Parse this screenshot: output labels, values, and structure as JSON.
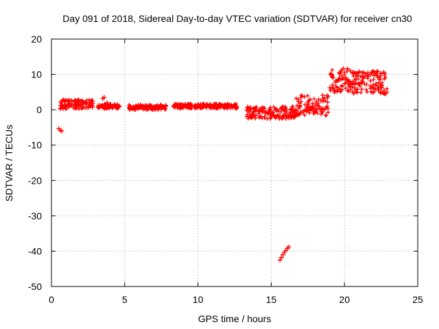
{
  "chart_data": {
    "type": "scatter",
    "title": "Day 091 of 2018, Sidereal Day-to-day VTEC variation (SDTVAR) for receiver cn30",
    "xlabel": "GPS time / hours",
    "ylabel": "SDTVAR / TECUs",
    "xlim": [
      0,
      25
    ],
    "ylim": [
      -50,
      20
    ],
    "xticks": [
      "0",
      "5",
      "10",
      "15",
      "20",
      "25"
    ],
    "yticks": [
      "20",
      "10",
      "0",
      "-10",
      "-20",
      "-30",
      "-40",
      "-50"
    ],
    "grid": true,
    "marker": "+",
    "color": "#ff0000",
    "series": [
      {
        "name": "SDTVAR",
        "points": [
          [
            0.5,
            -5.3
          ],
          [
            0.6,
            -5.8
          ],
          [
            0.7,
            -6.0
          ],
          [
            0.6,
            0.3
          ],
          [
            0.8,
            0.8
          ],
          [
            1.0,
            1.2
          ],
          [
            1.2,
            1.8
          ],
          [
            1.4,
            2.2
          ],
          [
            1.6,
            2.5
          ],
          [
            1.8,
            2.7
          ],
          [
            2.0,
            2.4
          ],
          [
            2.2,
            2.0
          ],
          [
            2.4,
            1.8
          ],
          [
            2.6,
            2.1
          ],
          [
            2.8,
            2.4
          ],
          [
            1.9,
            1.6
          ],
          [
            2.1,
            1.5
          ],
          [
            2.5,
            1.2
          ],
          [
            2.7,
            1.4
          ],
          [
            3.2,
            0.8
          ],
          [
            3.4,
            1.0
          ],
          [
            3.6,
            1.2
          ],
          [
            3.5,
            3.2
          ],
          [
            3.6,
            3.5
          ],
          [
            3.8,
            2.0
          ],
          [
            4.0,
            1.5
          ],
          [
            4.2,
            1.2
          ],
          [
            4.4,
            1.0
          ],
          [
            4.6,
            0.8
          ],
          [
            5.4,
            0.5
          ],
          [
            5.6,
            0.8
          ],
          [
            5.8,
            1.0
          ],
          [
            6.0,
            0.6
          ],
          [
            6.2,
            0.9
          ],
          [
            6.4,
            1.2
          ],
          [
            6.6,
            0.7
          ],
          [
            6.8,
            1.0
          ],
          [
            7.0,
            0.8
          ],
          [
            7.2,
            1.1
          ],
          [
            7.4,
            0.9
          ],
          [
            7.6,
            0.7
          ],
          [
            7.8,
            1.0
          ],
          [
            8.4,
            1.2
          ],
          [
            8.6,
            1.5
          ],
          [
            8.8,
            1.0
          ],
          [
            9.0,
            1.3
          ],
          [
            9.2,
            1.1
          ],
          [
            9.4,
            1.4
          ],
          [
            9.6,
            1.0
          ],
          [
            9.8,
            1.2
          ],
          [
            10.0,
            1.3
          ],
          [
            10.2,
            1.1
          ],
          [
            10.4,
            1.0
          ],
          [
            10.6,
            1.2
          ],
          [
            10.8,
            1.0
          ],
          [
            11.0,
            1.1
          ],
          [
            11.2,
            0.9
          ],
          [
            11.4,
            1.0
          ],
          [
            11.6,
            1.2
          ],
          [
            11.8,
            1.0
          ],
          [
            12.0,
            1.1
          ],
          [
            12.2,
            1.2
          ],
          [
            12.4,
            1.0
          ],
          [
            12.6,
            0.9
          ],
          [
            13.4,
            0.8
          ],
          [
            13.6,
            0.6
          ],
          [
            13.8,
            0.3
          ],
          [
            14.0,
            0.0
          ],
          [
            14.2,
            -0.3
          ],
          [
            14.4,
            -0.6
          ],
          [
            14.6,
            -0.9
          ],
          [
            14.8,
            -1.1
          ],
          [
            15.0,
            -1.3
          ],
          [
            15.2,
            -1.5
          ],
          [
            15.4,
            -1.6
          ],
          [
            15.6,
            -1.7
          ],
          [
            15.8,
            -1.8
          ],
          [
            16.0,
            -2.0
          ],
          [
            16.2,
            -2.3
          ],
          [
            16.4,
            -2.2
          ],
          [
            16.6,
            -1.8
          ],
          [
            15.6,
            -42.5
          ],
          [
            15.7,
            -41.8
          ],
          [
            15.8,
            -41.0
          ],
          [
            15.9,
            -40.3
          ],
          [
            16.0,
            -39.8
          ],
          [
            16.1,
            -39.2
          ],
          [
            16.2,
            -38.8
          ],
          [
            16.8,
            -1.4
          ],
          [
            17.0,
            -1.0
          ],
          [
            17.2,
            -0.6
          ],
          [
            17.4,
            -0.2
          ],
          [
            17.6,
            0.3
          ],
          [
            17.8,
            0.8
          ],
          [
            18.0,
            1.3
          ],
          [
            18.2,
            1.9
          ],
          [
            18.4,
            2.6
          ],
          [
            18.6,
            3.4
          ],
          [
            18.8,
            4.0
          ],
          [
            19.0,
            6.2
          ],
          [
            19.2,
            7.0
          ],
          [
            19.4,
            7.8
          ],
          [
            19.6,
            8.6
          ],
          [
            19.8,
            9.5
          ],
          [
            20.0,
            10.5
          ],
          [
            20.2,
            11.5
          ],
          [
            20.1,
            9.0
          ],
          [
            20.3,
            8.0
          ],
          [
            19.3,
            5.5
          ],
          [
            20.4,
            11.0
          ],
          [
            20.6,
            10.6
          ],
          [
            20.8,
            10.2
          ],
          [
            21.0,
            10.8
          ],
          [
            21.2,
            10.5
          ],
          [
            21.4,
            10.2
          ],
          [
            21.6,
            10.5
          ],
          [
            21.8,
            10.0
          ],
          [
            22.0,
            10.6
          ],
          [
            22.2,
            9.8
          ],
          [
            20.5,
            7.5
          ],
          [
            20.7,
            6.2
          ],
          [
            20.9,
            5.8
          ],
          [
            21.2,
            7.8
          ],
          [
            21.5,
            7.2
          ],
          [
            21.8,
            6.0
          ],
          [
            22.0,
            5.0
          ],
          [
            22.3,
            5.8
          ],
          [
            22.5,
            6.2
          ],
          [
            22.7,
            5.5
          ],
          [
            22.8,
            4.5
          ],
          [
            22.9,
            5.0
          ]
        ],
        "bands": [
          {
            "x": [
              0.6,
              2.9
            ],
            "y": [
              0.2,
              2.9
            ]
          },
          {
            "x": [
              3.1,
              4.7
            ],
            "y": [
              0.3,
              1.6
            ]
          },
          {
            "x": [
              5.3,
              7.9
            ],
            "y": [
              0.0,
              1.4
            ]
          },
          {
            "x": [
              8.3,
              12.7
            ],
            "y": [
              0.4,
              1.7
            ]
          },
          {
            "x": [
              13.3,
              16.7
            ],
            "y": [
              -2.6,
              1.0
            ]
          },
          {
            "x": [
              16.7,
              18.9
            ],
            "y": [
              -1.6,
              4.2
            ]
          },
          {
            "x": [
              19.0,
              20.3
            ],
            "y": [
              5.0,
              11.8
            ]
          },
          {
            "x": [
              20.3,
              22.9
            ],
            "y": [
              4.5,
              11.0
            ]
          }
        ]
      }
    ]
  }
}
